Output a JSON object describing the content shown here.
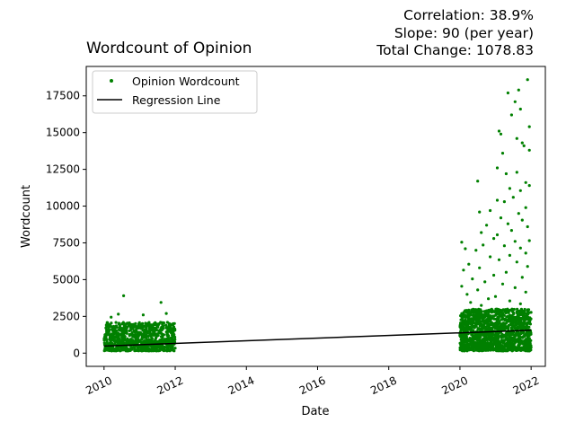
{
  "chart_data": {
    "type": "scatter",
    "title": "Wordcount of Opinion",
    "xlabel": "Date",
    "ylabel": "Wordcount",
    "stats": {
      "correlation": "Correlation: 38.9%",
      "slope": "Slope: 90 (per year)",
      "total_change": "Total Change: 1078.83"
    },
    "xlim": [
      2009.5,
      2022.4
    ],
    "ylim": [
      -900,
      19500
    ],
    "x_ticks": [
      2010,
      2012,
      2014,
      2016,
      2018,
      2020,
      2022
    ],
    "y_ticks": [
      0,
      2500,
      5000,
      7500,
      10000,
      12500,
      15000,
      17500
    ],
    "legend": {
      "placement": "top-left",
      "entries": [
        "Opinion Wordcount",
        "Regression Line"
      ]
    },
    "colors": {
      "points": "#008000",
      "regression": "#000000"
    },
    "regression": {
      "x": [
        2010.0,
        2022.0
      ],
      "y": [
        480,
        1559
      ]
    },
    "series": [
      {
        "name": "Opinion Wordcount",
        "clusters": [
          {
            "x_range": [
              2010.0,
              2012.0
            ],
            "y_typical": [
              150,
              2100
            ]
          },
          {
            "x_range": [
              2020.0,
              2022.0
            ],
            "y_typical": [
              150,
              3000
            ]
          }
        ],
        "outliers": [
          {
            "x": 2010.55,
            "y": 3900
          },
          {
            "x": 2011.6,
            "y": 3450
          },
          {
            "x": 2010.4,
            "y": 2650
          },
          {
            "x": 2011.1,
            "y": 2600
          },
          {
            "x": 2011.75,
            "y": 2700
          },
          {
            "x": 2010.2,
            "y": 2450
          },
          {
            "x": 2021.9,
            "y": 18600
          },
          {
            "x": 2021.65,
            "y": 17900
          },
          {
            "x": 2021.35,
            "y": 17700
          },
          {
            "x": 2021.55,
            "y": 17100
          },
          {
            "x": 2021.7,
            "y": 16600
          },
          {
            "x": 2021.45,
            "y": 16200
          },
          {
            "x": 2021.95,
            "y": 15400
          },
          {
            "x": 2021.1,
            "y": 15100
          },
          {
            "x": 2021.15,
            "y": 14900
          },
          {
            "x": 2021.6,
            "y": 14600
          },
          {
            "x": 2021.75,
            "y": 14300
          },
          {
            "x": 2021.8,
            "y": 14100
          },
          {
            "x": 2021.95,
            "y": 13800
          },
          {
            "x": 2021.2,
            "y": 13600
          },
          {
            "x": 2021.05,
            "y": 12600
          },
          {
            "x": 2021.3,
            "y": 12200
          },
          {
            "x": 2021.6,
            "y": 12300
          },
          {
            "x": 2021.85,
            "y": 11600
          },
          {
            "x": 2021.95,
            "y": 11400
          },
          {
            "x": 2020.5,
            "y": 11700
          },
          {
            "x": 2021.4,
            "y": 11200
          },
          {
            "x": 2021.7,
            "y": 11050
          },
          {
            "x": 2021.5,
            "y": 10600
          },
          {
            "x": 2021.25,
            "y": 10300
          },
          {
            "x": 2021.85,
            "y": 9900
          },
          {
            "x": 2021.05,
            "y": 10400
          },
          {
            "x": 2020.85,
            "y": 9700
          },
          {
            "x": 2020.55,
            "y": 9600
          },
          {
            "x": 2021.65,
            "y": 9500
          },
          {
            "x": 2021.75,
            "y": 9050
          },
          {
            "x": 2021.15,
            "y": 9200
          },
          {
            "x": 2020.75,
            "y": 8700
          },
          {
            "x": 2021.9,
            "y": 8600
          },
          {
            "x": 2021.35,
            "y": 8800
          },
          {
            "x": 2020.6,
            "y": 8200
          },
          {
            "x": 2021.45,
            "y": 8350
          },
          {
            "x": 2021.05,
            "y": 8050
          },
          {
            "x": 2021.95,
            "y": 7650
          },
          {
            "x": 2021.55,
            "y": 7600
          },
          {
            "x": 2020.95,
            "y": 7800
          },
          {
            "x": 2020.05,
            "y": 7550
          },
          {
            "x": 2021.25,
            "y": 7300
          },
          {
            "x": 2020.65,
            "y": 7350
          },
          {
            "x": 2021.7,
            "y": 7150
          },
          {
            "x": 2020.15,
            "y": 7100
          },
          {
            "x": 2020.45,
            "y": 7000
          },
          {
            "x": 2021.85,
            "y": 6800
          },
          {
            "x": 2021.4,
            "y": 6650
          },
          {
            "x": 2020.85,
            "y": 6550
          },
          {
            "x": 2021.1,
            "y": 6350
          },
          {
            "x": 2021.6,
            "y": 6200
          },
          {
            "x": 2020.25,
            "y": 6050
          },
          {
            "x": 2021.9,
            "y": 5900
          },
          {
            "x": 2020.55,
            "y": 5800
          },
          {
            "x": 2020.1,
            "y": 5650
          },
          {
            "x": 2021.3,
            "y": 5500
          },
          {
            "x": 2020.95,
            "y": 5300
          },
          {
            "x": 2021.75,
            "y": 5150
          },
          {
            "x": 2020.35,
            "y": 5050
          },
          {
            "x": 2020.7,
            "y": 4850
          },
          {
            "x": 2021.2,
            "y": 4700
          },
          {
            "x": 2020.05,
            "y": 4550
          },
          {
            "x": 2021.55,
            "y": 4450
          },
          {
            "x": 2020.5,
            "y": 4300
          },
          {
            "x": 2021.85,
            "y": 4150
          },
          {
            "x": 2020.2,
            "y": 4000
          },
          {
            "x": 2021.0,
            "y": 3850
          },
          {
            "x": 2020.8,
            "y": 3700
          },
          {
            "x": 2021.4,
            "y": 3550
          },
          {
            "x": 2020.3,
            "y": 3450
          },
          {
            "x": 2021.7,
            "y": 3350
          },
          {
            "x": 2020.6,
            "y": 3250
          }
        ]
      }
    ]
  }
}
